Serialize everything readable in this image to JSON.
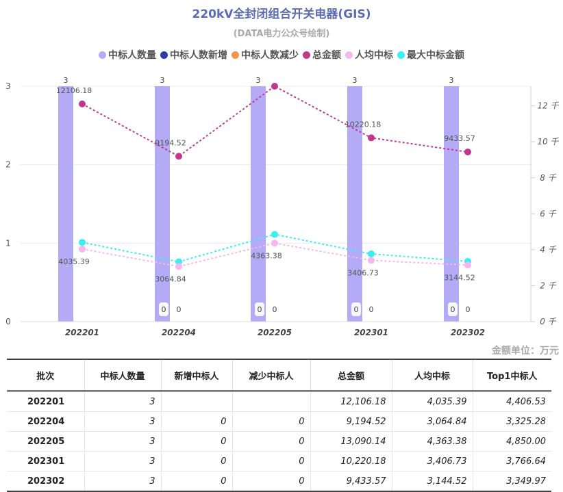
{
  "title": "220kV全封闭组合开关电器(GIS)",
  "subtitle": "(DATA电力公众号绘制)",
  "unit_note": "金额单位：万元",
  "legend": [
    {
      "label": "中标人数量",
      "color": "#b4aaf5"
    },
    {
      "label": "中标人数新增",
      "color": "#2b3ea8"
    },
    {
      "label": "中标人数减少",
      "color": "#f5934a"
    },
    {
      "label": "总金额",
      "color": "#c0398f"
    },
    {
      "label": "人均中标",
      "color": "#f5b8ee"
    },
    {
      "label": "最大中标金额",
      "color": "#3ceef0"
    }
  ],
  "chart_data": {
    "type": "bar",
    "categories": [
      "202201",
      "202204",
      "202205",
      "202301",
      "202302"
    ],
    "left_axis": {
      "ticks": [
        "0",
        "1",
        "2",
        "3"
      ],
      "ylim": [
        0,
        3
      ]
    },
    "right_axis": {
      "ticks": [
        "0 千",
        "2 千",
        "4 千",
        "6 千",
        "8 千",
        "10 千",
        "12 千"
      ],
      "ylim": [
        0,
        13090.14
      ]
    },
    "series": [
      {
        "name": "中标人数量",
        "type": "bar",
        "axis": "left",
        "values": [
          3,
          3,
          3,
          3,
          3
        ],
        "labels": [
          "3",
          "3",
          "3",
          "3",
          "3"
        ]
      },
      {
        "name": "中标人数新增",
        "type": "bar",
        "axis": "left",
        "values": [
          null,
          0,
          0,
          0,
          0
        ],
        "labels": [
          "",
          "0",
          "0",
          "0",
          "0"
        ]
      },
      {
        "name": "中标人数减少",
        "type": "bar",
        "axis": "left",
        "values": [
          null,
          0,
          0,
          0,
          0
        ],
        "labels": [
          "",
          "0",
          "0",
          "0",
          "0"
        ]
      },
      {
        "name": "总金额",
        "type": "line",
        "axis": "right",
        "values": [
          12106.18,
          9194.52,
          13090.14,
          10220.18,
          9433.57
        ],
        "labels": [
          "12106.18",
          "9194.52",
          "",
          "10220.18",
          "9433.57"
        ]
      },
      {
        "name": "人均中标",
        "type": "line",
        "axis": "right",
        "values": [
          4035.39,
          3064.84,
          4363.38,
          3406.73,
          3144.52
        ],
        "labels": [
          "4035.39",
          "3064.84",
          "4363.38",
          "3406.73",
          "3144.52"
        ]
      },
      {
        "name": "最大中标金额",
        "type": "line",
        "axis": "right",
        "values": [
          4406.53,
          3325.28,
          4850.0,
          3766.64,
          3349.97
        ],
        "labels": []
      }
    ]
  },
  "table": {
    "headers": [
      "批次",
      "中标人数量",
      "新增中标人",
      "减少中标人",
      "总金额",
      "人均中标",
      "Top1中标人"
    ],
    "rows": [
      [
        "202201",
        "3",
        "",
        "",
        "12,106.18",
        "4,035.39",
        "4,406.53"
      ],
      [
        "202204",
        "3",
        "0",
        "0",
        "9,194.52",
        "3,064.84",
        "3,325.28"
      ],
      [
        "202205",
        "3",
        "0",
        "0",
        "13,090.14",
        "4,363.38",
        "4,850.00"
      ],
      [
        "202301",
        "3",
        "0",
        "0",
        "10,220.18",
        "3,406.73",
        "3,766.64"
      ],
      [
        "202302",
        "3",
        "0",
        "0",
        "9,433.57",
        "3,144.52",
        "3,349.97"
      ]
    ]
  }
}
